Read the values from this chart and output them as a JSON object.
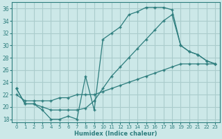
{
  "xlabel": "Humidex (Indice chaleur)",
  "bg_color": "#cce8e8",
  "grid_color": "#aacccc",
  "line_color": "#2d7d7d",
  "xlim": [
    -0.5,
    23.5
  ],
  "ylim": [
    17.5,
    37.0
  ],
  "xticks": [
    0,
    1,
    2,
    3,
    4,
    5,
    6,
    7,
    8,
    9,
    10,
    11,
    12,
    13,
    14,
    15,
    16,
    17,
    18,
    19,
    20,
    21,
    22,
    23
  ],
  "yticks": [
    18,
    20,
    22,
    24,
    26,
    28,
    30,
    32,
    34,
    36
  ],
  "line1": [
    23.0,
    20.5,
    20.5,
    19.5,
    18.0,
    18.0,
    18.5,
    18.0,
    25.0,
    19.5,
    31.0,
    32.0,
    33.0,
    35.0,
    35.5,
    36.2,
    36.2,
    36.2,
    35.8,
    30.0,
    29.0,
    28.5,
    27.5,
    27.0
  ],
  "line2": [
    23.0,
    20.5,
    20.5,
    20.0,
    19.5,
    19.5,
    19.5,
    19.5,
    19.8,
    21.0,
    23.0,
    25.0,
    26.5,
    28.0,
    29.5,
    31.0,
    32.5,
    34.0,
    35.0,
    30.0,
    29.0,
    28.5,
    27.5,
    27.0
  ],
  "line3": [
    22.0,
    21.0,
    21.0,
    21.0,
    21.0,
    21.5,
    21.5,
    22.0,
    22.0,
    22.0,
    22.5,
    23.0,
    23.5,
    24.0,
    24.5,
    25.0,
    25.5,
    26.0,
    26.5,
    27.0,
    27.0,
    27.0,
    27.0,
    27.0
  ]
}
